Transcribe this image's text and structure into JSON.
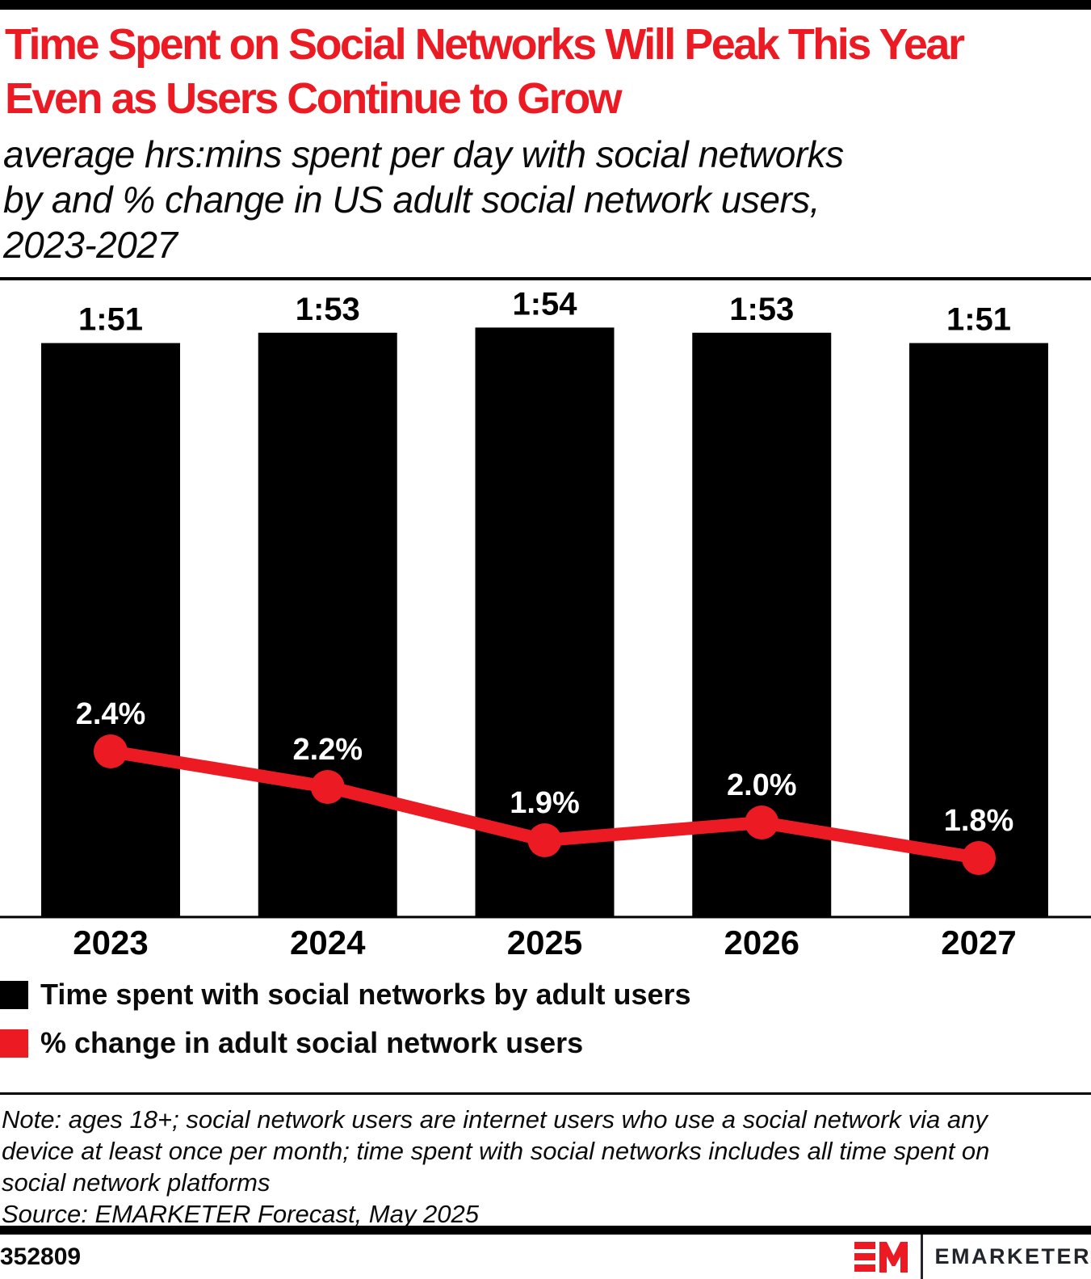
{
  "page": {
    "title_line1": "Time Spent on Social Networks Will Peak This Year",
    "title_line2": "Even as Users Continue to Grow",
    "subtitle_lines": [
      "average hrs:mins spent per day with social networks",
      "by and % change in US adult social network users,",
      "2023-2027"
    ],
    "note_lines": [
      "Note: ages 18+; social network users are internet users who use a social network via any",
      "device at least once per month; time spent with social networks includes all time spent on",
      "social network platforms"
    ],
    "source": "Source: EMARKETER Forecast, May 2025",
    "chart_id": "352809",
    "brand": "EMARKETER"
  },
  "colors": {
    "accent_red": "#EC1B23",
    "bar_black": "#000000",
    "logo_text": "#21242a"
  },
  "legend": [
    {
      "label": "Time spent with social networks by adult users",
      "color": "#000000"
    },
    {
      "label": "% change in adult social network users",
      "color": "#EC1B23"
    }
  ],
  "chart_data": {
    "type": "bar",
    "subtype": "bar+line combo",
    "categories": [
      "2023",
      "2024",
      "2025",
      "2026",
      "2027"
    ],
    "series": [
      {
        "name": "Time spent with social networks by adult users",
        "type": "bar",
        "unit": "hrs:mins per day",
        "labels": [
          "1:51",
          "1:53",
          "1:54",
          "1:53",
          "1:51"
        ],
        "values_minutes": [
          111,
          113,
          114,
          113,
          111
        ],
        "color": "#000000"
      },
      {
        "name": "% change in adult social network users",
        "type": "line",
        "unit": "%",
        "labels": [
          "2.4%",
          "2.2%",
          "1.9%",
          "2.0%",
          "1.8%"
        ],
        "values": [
          2.4,
          2.2,
          1.9,
          2.0,
          1.8
        ],
        "color": "#EC1B23"
      }
    ],
    "title": "Time Spent on Social Networks Will Peak This Year Even as Users Continue to Grow",
    "xlabel": "",
    "ylabel": "",
    "grid": false,
    "legend_position": "bottom-left",
    "value_labels_shown": true
  }
}
